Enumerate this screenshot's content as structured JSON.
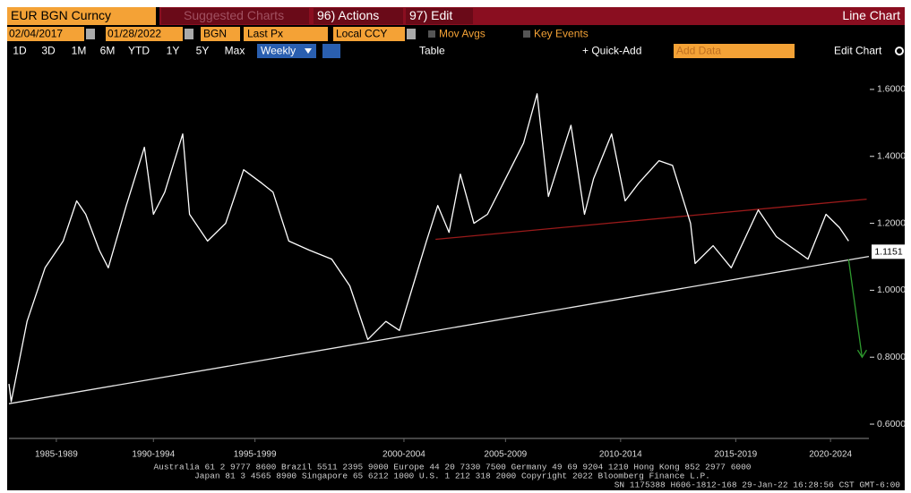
{
  "toolbar": {
    "security": "EUR BGN Curncy",
    "suggested": "Suggested Charts",
    "actions": "96) Actions",
    "edit": "97) Edit",
    "chart_type": "Line Chart",
    "start_date": "02/04/2017",
    "end_date": "01/28/2022",
    "source": "BGN",
    "field": "Last Px",
    "currency": "Local CCY",
    "mov_avgs": "Mov Avgs",
    "key_events": "Key Events",
    "ranges": [
      "1D",
      "3D",
      "1M",
      "6M",
      "YTD",
      "1Y",
      "5Y",
      "Max"
    ],
    "frequency": "Weekly",
    "table": "Table",
    "quick_add": "+ Quick-Add",
    "add_data": "Add Data",
    "edit_chart": "Edit Chart"
  },
  "chart_data": {
    "type": "line",
    "color": "#ffffff",
    "x": [
      1984.9,
      1985.0,
      1985.7,
      1986.5,
      1987.3,
      1987.9,
      1988.3,
      1988.9,
      1989.3,
      1990.1,
      1990.9,
      1991.3,
      1991.8,
      1992.6,
      1992.9,
      1993.7,
      1994.5,
      1995.3,
      1996.1,
      1996.6,
      1997.3,
      1998.2,
      1999.2,
      2000.0,
      2000.8,
      2001.6,
      2002.2,
      2002.8,
      2003.4,
      2003.9,
      2004.4,
      2004.9,
      2005.5,
      2006.1,
      2006.9,
      2007.7,
      2008.3,
      2008.8,
      2009.3,
      2009.8,
      2010.4,
      2010.8,
      2011.6,
      2012.2,
      2012.8,
      2013.7,
      2014.3,
      2015.1,
      2015.3,
      2016.1,
      2016.9,
      2018.1,
      2018.9,
      2020.3,
      2021.1,
      2021.7,
      2022.1
    ],
    "values": [
      0.72,
      0.667,
      0.907,
      1.067,
      1.147,
      1.267,
      1.227,
      1.12,
      1.067,
      1.253,
      1.427,
      1.227,
      1.293,
      1.467,
      1.227,
      1.147,
      1.2,
      1.36,
      1.32,
      1.293,
      1.147,
      1.12,
      1.093,
      1.013,
      0.853,
      0.907,
      0.88,
      1.013,
      1.147,
      1.253,
      1.173,
      1.347,
      1.2,
      1.227,
      1.333,
      1.44,
      1.587,
      1.28,
      1.387,
      1.493,
      1.227,
      1.333,
      1.467,
      1.267,
      1.32,
      1.387,
      1.373,
      1.2,
      1.08,
      1.133,
      1.067,
      1.24,
      1.16,
      1.093,
      1.227,
      1.187,
      1.147
    ],
    "last_value": 1.1151,
    "trend_lines": [
      {
        "x": [
          1984.9,
          2023.0
        ],
        "y": [
          0.661,
          1.101
        ],
        "color": "#e8e8e8"
      },
      {
        "x": [
          2003.8,
          2022.9
        ],
        "y": [
          1.152,
          1.272
        ],
        "color": "#9a1a1a"
      },
      {
        "x": [
          2022.1,
          2022.7
        ],
        "y": [
          1.093,
          0.8
        ],
        "color": "#2e9a2e"
      }
    ],
    "xlim": [
      1984.9,
      2023.0
    ],
    "ylim": [
      0.56,
      1.68
    ],
    "xticks": [
      {
        "value": 1987.0,
        "label": "1985-1989"
      },
      {
        "value": 1991.3,
        "label": "1990-1994"
      },
      {
        "value": 1995.8,
        "label": "1995-1999"
      },
      {
        "value": 2002.4,
        "label": "2000-2004"
      },
      {
        "value": 2006.9,
        "label": "2005-2009"
      },
      {
        "value": 2012.0,
        "label": "2010-2014"
      },
      {
        "value": 2017.1,
        "label": "2015-2019"
      },
      {
        "value": 2021.3,
        "label": "2020-2024"
      }
    ],
    "yticks": [
      {
        "value": 0.6,
        "label": "0.6000"
      },
      {
        "value": 0.8,
        "label": "0.8000"
      },
      {
        "value": 1.0,
        "label": "1.0000"
      },
      {
        "value": 1.2,
        "label": "1.2000"
      },
      {
        "value": 1.4,
        "label": "1.4000"
      },
      {
        "value": 1.6,
        "label": "1.6000"
      }
    ]
  },
  "footer": {
    "line1": "Australia 61 2 9777 8600 Brazil 5511 2395 9000 Europe 44 20 7330 7500 Germany 49 69 9204 1210 Hong Kong 852 2977 6000",
    "line2": "Japan 81 3 4565 8900        Singapore 65 6212 1000        U.S. 1 212 318 2000        Copyright 2022 Bloomberg Finance L.P.",
    "line3": "SN 1175388 H606-1812-168 29-Jan-22 16:28:56 CST  GMT-6:00"
  }
}
